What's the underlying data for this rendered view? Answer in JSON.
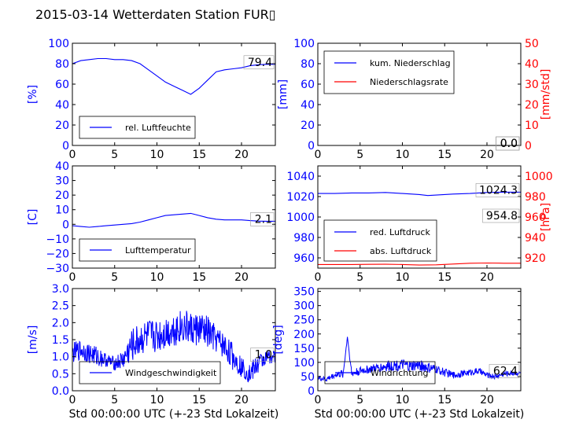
{
  "title": "2015-03-14 Wetterdaten Station FUR",
  "title_glyph": "▯",
  "colors": {
    "blue": "#0000ff",
    "red": "#ff0000",
    "light_blue": "#7777ff",
    "black": "#000000"
  },
  "chart_data": [
    {
      "id": "humidity",
      "type": "line",
      "xlim": [
        0,
        24
      ],
      "x_ticks": [
        "0",
        "5",
        "10",
        "15",
        "20"
      ],
      "ylim": [
        0,
        100
      ],
      "y_ticks": [
        "0",
        "20",
        "40",
        "60",
        "80",
        "100"
      ],
      "ylabel": "[%]",
      "xlabel": "",
      "legend": {
        "position": "lower-left",
        "entries": [
          {
            "label": "rel. Luftfeuchte",
            "color": "#0000ff"
          }
        ]
      },
      "annotations": [
        {
          "text": "79.4",
          "x": 24,
          "y": 79.4
        }
      ],
      "series": [
        {
          "name": "rel. Luftfeuchte",
          "color": "#0000ff",
          "x": [
            0,
            1,
            2,
            3,
            4,
            5,
            6,
            7,
            8,
            9,
            10,
            11,
            12,
            13,
            14,
            15,
            16,
            17,
            18,
            19,
            20,
            21,
            22,
            23,
            24
          ],
          "y": [
            80,
            83,
            84,
            85,
            85,
            84,
            84,
            83,
            80,
            74,
            68,
            62,
            58,
            54,
            50,
            56,
            64,
            72,
            74,
            75,
            76,
            78,
            79,
            79.4,
            79.4
          ]
        }
      ]
    },
    {
      "id": "precipitation",
      "type": "line",
      "xlim": [
        0,
        24
      ],
      "x_ticks": [
        "0",
        "5",
        "10",
        "15",
        "20"
      ],
      "ylim": [
        0,
        100
      ],
      "y_ticks": [
        "0",
        "20",
        "40",
        "60",
        "80",
        "100"
      ],
      "ylabel": "[mm]",
      "ylim_right": [
        0,
        50
      ],
      "y_ticks_right": [
        "0",
        "10",
        "20",
        "30",
        "40",
        "50"
      ],
      "ylabel_right": "[mm/std]",
      "xlabel": "",
      "legend": {
        "position": "upper-left",
        "entries": [
          {
            "label": "kum. Niederschlag",
            "color": "#0000ff"
          },
          {
            "label": "Niederschlagsrate",
            "color": "#ff0000"
          }
        ]
      },
      "annotations": [
        {
          "text": "0.0",
          "x": 24,
          "y": 0
        },
        {
          "text": "0.0",
          "x": 24,
          "y": 0
        }
      ],
      "series": [
        {
          "name": "kum. Niederschlag",
          "color": "#0000ff",
          "x": [
            0,
            24
          ],
          "y": [
            0,
            0
          ]
        },
        {
          "name": "Niederschlagsrate",
          "color": "#ff0000",
          "x": [
            0,
            24
          ],
          "y": [
            0,
            0
          ]
        }
      ]
    },
    {
      "id": "temperature",
      "type": "line",
      "xlim": [
        0,
        24
      ],
      "x_ticks": [
        "0",
        "5",
        "10",
        "15",
        "20"
      ],
      "ylim": [
        -30,
        40
      ],
      "y_ticks": [
        "−30",
        "−20",
        "−10",
        "0",
        "10",
        "20",
        "30",
        "40"
      ],
      "y_tick_values": [
        -30,
        -20,
        -10,
        0,
        10,
        20,
        30,
        40
      ],
      "ylabel": "[C]",
      "xlabel": "",
      "legend": {
        "position": "lower-left",
        "entries": [
          {
            "label": "Lufttemperatur",
            "color": "#0000ff"
          }
        ]
      },
      "annotations": [
        {
          "text": "2.1",
          "x": 24,
          "y": 2.1
        }
      ],
      "series": [
        {
          "name": "Lufttemperatur",
          "color": "#0000ff",
          "x": [
            0,
            1,
            2,
            3,
            4,
            5,
            6,
            7,
            8,
            9,
            10,
            11,
            12,
            13,
            14,
            15,
            16,
            17,
            18,
            19,
            20,
            21,
            22,
            23,
            24
          ],
          "y": [
            -1,
            -1.5,
            -2,
            -1.5,
            -1,
            -0.5,
            0,
            0.5,
            1.5,
            3,
            4.5,
            6,
            6.5,
            7,
            7.5,
            6,
            4.5,
            3.5,
            3,
            3,
            3,
            2.5,
            2.2,
            2.1,
            2.1
          ]
        }
      ]
    },
    {
      "id": "pressure",
      "type": "line",
      "xlim": [
        0,
        24
      ],
      "x_ticks": [
        "0",
        "5",
        "10",
        "15",
        "20"
      ],
      "ylim": [
        950,
        1050
      ],
      "y_ticks": [
        "960",
        "980",
        "1000",
        "1020",
        "1040"
      ],
      "y_tick_values": [
        960,
        980,
        1000,
        1020,
        1040
      ],
      "ylim_right": [
        910,
        1010
      ],
      "y_ticks_right": [
        "920",
        "940",
        "960",
        "980",
        "1000"
      ],
      "y_tick_values_right": [
        920,
        940,
        960,
        980,
        1000
      ],
      "ylabel_right": "[hPa]",
      "xlabel": "",
      "legend": {
        "position": "lower-left",
        "entries": [
          {
            "label": "red. Luftdruck",
            "color": "#0000ff"
          },
          {
            "label": "abs. Luftdruck",
            "color": "#ff0000"
          }
        ]
      },
      "annotations": [
        {
          "text": "1024.3",
          "x": 24,
          "y": 1024.3
        },
        {
          "text": "954.8",
          "x": 24,
          "y": 995
        }
      ],
      "series": [
        {
          "name": "red. Luftdruck",
          "color": "#0000ff",
          "x": [
            0,
            2,
            4,
            6,
            8,
            10,
            12,
            13,
            14,
            16,
            18,
            20,
            22,
            24
          ],
          "y": [
            1023,
            1023,
            1023.5,
            1023.5,
            1024,
            1023,
            1022,
            1021,
            1021.5,
            1022.5,
            1023,
            1024,
            1024.3,
            1024.3
          ]
        },
        {
          "name": "abs. Luftdruck",
          "color": "#ff0000",
          "x": [
            0,
            2,
            4,
            6,
            8,
            10,
            12,
            14,
            16,
            18,
            20,
            22,
            24
          ],
          "y": [
            953.5,
            953.5,
            953.5,
            953.7,
            953.8,
            953.5,
            953,
            953.2,
            954,
            954.8,
            955,
            954.8,
            954.8
          ]
        }
      ]
    },
    {
      "id": "wind_speed",
      "type": "line",
      "xlim": [
        0,
        24
      ],
      "x_ticks": [
        "0",
        "5",
        "10",
        "15",
        "20"
      ],
      "ylim": [
        0,
        3
      ],
      "y_ticks": [
        "0.0",
        "0.5",
        "1.0",
        "1.5",
        "2.0",
        "2.5",
        "3.0"
      ],
      "y_tick_values": [
        0,
        0.5,
        1,
        1.5,
        2,
        2.5,
        3
      ],
      "ylabel": "[m/s]",
      "xlabel": "Std 00:00:00 UTC (+-23 Std Lokalzeit)",
      "legend": {
        "position": "lower-left",
        "entries": [
          {
            "label": "Windgeschwindigkeit",
            "color": "#0000ff"
          }
        ]
      },
      "annotations": [
        {
          "text": "1.0",
          "x": 24,
          "y": 1.0
        }
      ],
      "series": [
        {
          "name": "Windgeschwindigkeit",
          "color": "#0000ff",
          "x": [
            0,
            1,
            2,
            3,
            4,
            5,
            6,
            7,
            8,
            9,
            10,
            11,
            12,
            13,
            14,
            15,
            16,
            17,
            18,
            19,
            20,
            21,
            22,
            23,
            24
          ],
          "y": [
            1.1,
            1.2,
            1.1,
            1.0,
            0.9,
            0.8,
            0.9,
            1.3,
            1.5,
            1.6,
            1.6,
            1.7,
            1.8,
            1.9,
            1.8,
            1.8,
            1.7,
            1.5,
            1.3,
            1.0,
            0.7,
            0.5,
            0.8,
            1.0,
            1.0
          ],
          "spread": [
            0.3,
            0.3,
            0.3,
            0.3,
            0.2,
            0.2,
            0.3,
            0.5,
            0.5,
            0.5,
            0.5,
            0.5,
            0.5,
            0.5,
            0.5,
            0.5,
            0.5,
            0.4,
            0.4,
            0.4,
            0.3,
            0.3,
            0.3,
            0.2,
            0.2
          ]
        }
      ]
    },
    {
      "id": "wind_direction",
      "type": "line",
      "xlim": [
        0,
        24
      ],
      "x_ticks": [
        "0",
        "5",
        "10",
        "15",
        "20"
      ],
      "ylim": [
        0,
        360
      ],
      "y_ticks": [
        "0",
        "50",
        "100",
        "150",
        "200",
        "250",
        "300",
        "350"
      ],
      "y_tick_values": [
        0,
        50,
        100,
        150,
        200,
        250,
        300,
        350
      ],
      "ylabel": "[deg]",
      "xlabel": "Std 00:00:00 UTC (+-23 Std Lokalzeit)",
      "legend": {
        "position": "lower-left",
        "entries": [
          {
            "label": "Windrichtung",
            "color": "#0000ff"
          }
        ]
      },
      "annotations": [
        {
          "text": "62.4",
          "x": 24,
          "y": 62.4
        }
      ],
      "series": [
        {
          "name": "Windrichtung",
          "color": "#0000ff",
          "x": [
            0,
            1,
            2,
            3,
            3.5,
            4,
            5,
            6,
            7,
            8,
            9,
            10,
            11,
            12,
            13,
            14,
            15,
            16,
            17,
            18,
            19,
            20,
            21,
            22,
            23,
            24
          ],
          "y": [
            45,
            40,
            55,
            60,
            190,
            60,
            70,
            75,
            80,
            85,
            90,
            90,
            85,
            90,
            80,
            75,
            65,
            55,
            60,
            65,
            70,
            55,
            50,
            60,
            62,
            62.4
          ],
          "spread": [
            10,
            10,
            10,
            15,
            0,
            15,
            15,
            15,
            15,
            20,
            20,
            20,
            20,
            20,
            20,
            15,
            15,
            12,
            12,
            12,
            12,
            10,
            10,
            10,
            8,
            8
          ]
        }
      ]
    }
  ]
}
